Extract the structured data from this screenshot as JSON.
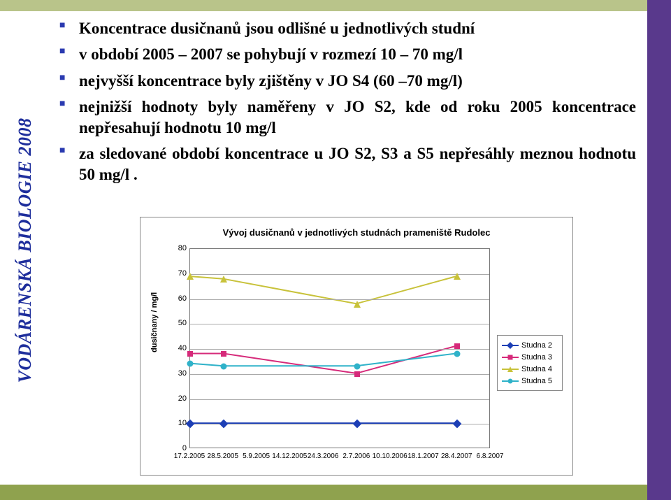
{
  "sideLabel": "VODÁRENSKÁ  BIOLOGIE  2008",
  "bgTopColor": "#b9c48a",
  "bgBotColor": "#8fa24e",
  "bgRightColor": "#59398c",
  "bullets": [
    "Koncentrace dusičnanů jsou odlišné u jednotlivých studní",
    "v  období 2005 – 2007 se pohybují v rozmezí 10 – 70 mg/l",
    "nejvyšší koncentrace byly zjištěny v JO S4 (60 –70  mg/l)",
    "nejnižší hodnoty byly naměřeny v JO S2, kde od roku 2005  koncentrace nepřesahují hodnotu 10 mg/l",
    "za sledované období  koncentrace u JO S2, S3 a S5 nepřesáhly meznou hodnotu 50 mg/l ."
  ],
  "chart": {
    "title": "Vývoj dusičnanů v jednotlivých studnách prameniště Rudolec",
    "ylabel": "dusičnany  /  mg/l",
    "ymin": 0,
    "ymax": 80,
    "ytick_step": 10,
    "xcats": [
      "17.2.2005",
      "28.5.2005",
      "5.9.2005",
      "14.12.2005",
      "24.3.2006",
      "2.7.2006",
      "10.10.2006",
      "18.1.2007",
      "28.4.2007",
      "6.8.2007"
    ],
    "xdata_idx": [
      0,
      1,
      5,
      8
    ],
    "grid_color": "#aaaaaa",
    "border_color": "#777777",
    "series": [
      {
        "name": "Studna 2",
        "color": "#1d3fb5",
        "marker": "diamond",
        "y": [
          10,
          10,
          10,
          10
        ]
      },
      {
        "name": "Studna 3",
        "color": "#d62a7a",
        "marker": "square",
        "y": [
          38,
          38,
          30,
          41
        ]
      },
      {
        "name": "Studna 4",
        "color": "#c8c23a",
        "marker": "triangle",
        "y": [
          69,
          68,
          58,
          69
        ]
      },
      {
        "name": "Studna 5",
        "color": "#2fb2c9",
        "marker": "circle",
        "y": [
          34,
          33,
          33,
          38
        ]
      }
    ],
    "title_fontsize": 13,
    "axis_fontsize": 11,
    "background_color": "#ffffff"
  }
}
